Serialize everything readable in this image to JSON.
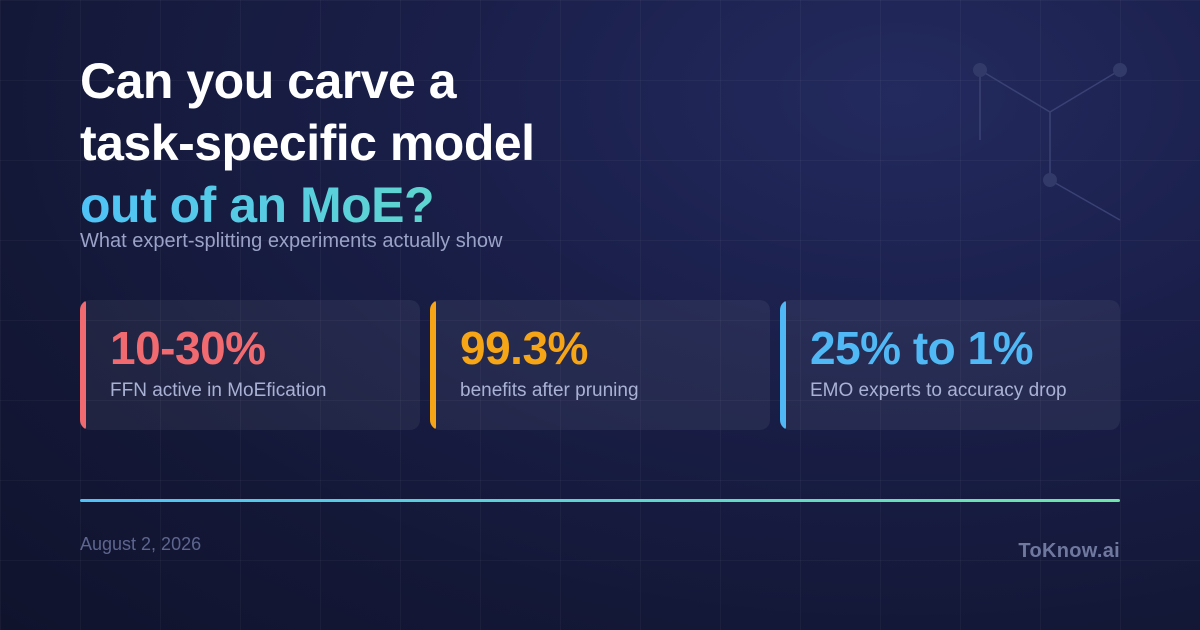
{
  "header": {
    "title_line1": "Can you carve a",
    "title_line2": "task-specific model",
    "title_line3": "out of an MoE?",
    "subtitle": "What expert-splitting experiments actually show"
  },
  "stats": [
    {
      "value": "10-30%",
      "label": "FFN active in MoEfication",
      "color": "#f06a6f"
    },
    {
      "value": "99.3%",
      "label": "benefits after pruning",
      "color": "#f5a516"
    },
    {
      "value": "25% to 1%",
      "label": "EMO experts to accuracy drop",
      "color": "#4fb8f5"
    }
  ],
  "footer": {
    "date": "August 2, 2026",
    "brand": "ToKnow.ai"
  },
  "colors": {
    "accent_start": "#4fc3f7",
    "accent_end": "#6ee7a8",
    "background": "#161a40"
  },
  "decoration": {
    "icon": "network-nodes-icon"
  }
}
